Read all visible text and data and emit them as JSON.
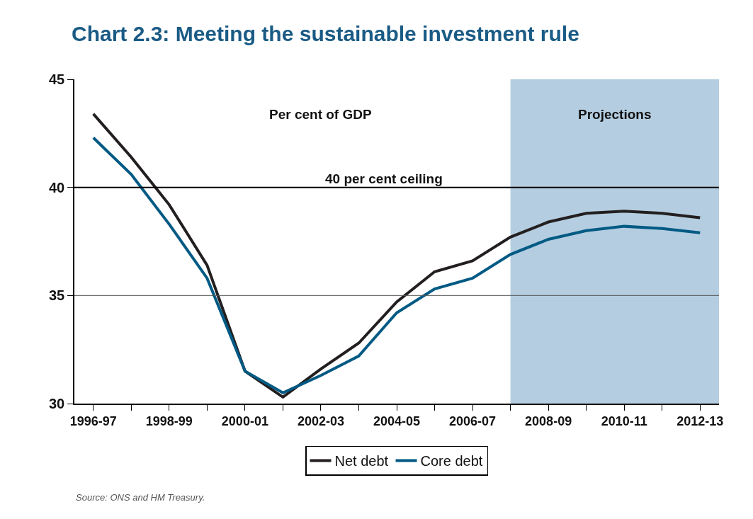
{
  "chart_data": {
    "type": "line",
    "title": "Chart 2.3: Meeting the sustainable investment rule",
    "categories": [
      "1996-97",
      null,
      "1998-99",
      null,
      "2000-01",
      null,
      "2002-03",
      null,
      "2004-05",
      null,
      "2006-07",
      null,
      "2008-09",
      null,
      "2010-11",
      null,
      "2012-13"
    ],
    "series": [
      {
        "name": "Net debt",
        "color": "#231f20",
        "values": [
          43.4,
          41.4,
          39.2,
          36.4,
          31.5,
          30.3,
          31.6,
          32.8,
          34.7,
          36.1,
          36.6,
          37.7,
          38.4,
          38.8,
          38.9,
          38.8,
          38.6
        ]
      },
      {
        "name": "Core debt",
        "color": "#005a84",
        "values": [
          42.3,
          40.6,
          38.3,
          35.8,
          31.5,
          30.5,
          31.3,
          32.2,
          34.2,
          35.3,
          35.8,
          36.9,
          37.6,
          38.0,
          38.2,
          38.1,
          37.9
        ]
      }
    ],
    "ylim": [
      30,
      45
    ],
    "yticks": [
      30,
      35,
      40,
      45
    ],
    "legend": "bottom",
    "marker": "none",
    "line_style": "solid",
    "ref_lines": [
      {
        "axis": "y",
        "value": 40,
        "label": "40 per cent ceiling",
        "color": "#000000"
      },
      {
        "axis": "y",
        "value": 35,
        "color": "#555555"
      }
    ],
    "annotations": [
      "Per cent of GDP",
      "Projections",
      "Source: ONS and HM Treasury."
    ]
  }
}
